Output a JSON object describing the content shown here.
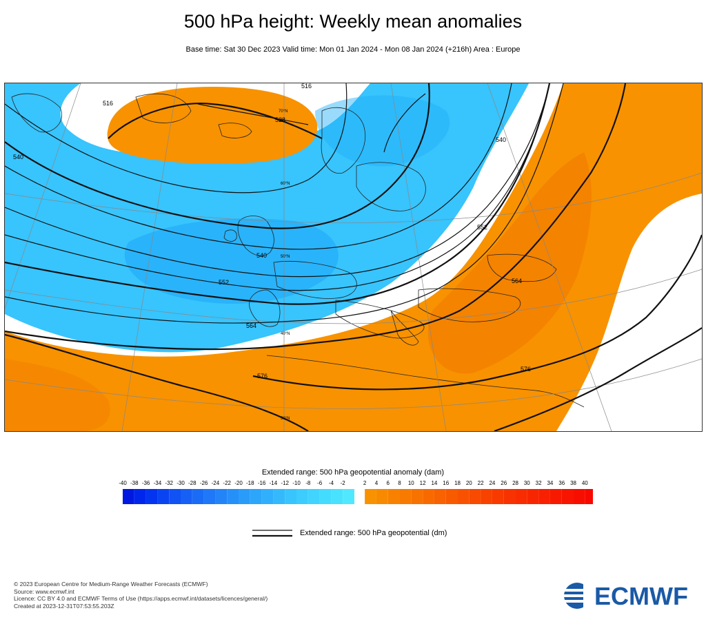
{
  "title": "500 hPa height: Weekly mean anomalies",
  "subtitle": "Base time: Sat 30 Dec 2023 Valid time: Mon 01 Jan 2024 - Mon 08 Jan 2024 (+216h) Area : Europe",
  "colorbar": {
    "title": "Extended range: 500 hPa geopotential anomaly (dam)",
    "ticks": [
      "-40",
      "-38",
      "-36",
      "-34",
      "-32",
      "-30",
      "-28",
      "-26",
      "-24",
      "-22",
      "-20",
      "-18",
      "-16",
      "-14",
      "-12",
      "-10",
      "-8",
      "-6",
      "-4",
      "-2",
      "2",
      "4",
      "6",
      "8",
      "10",
      "12",
      "14",
      "16",
      "18",
      "20",
      "22",
      "24",
      "26",
      "28",
      "30",
      "32",
      "34",
      "36",
      "38",
      "40"
    ],
    "negative_colors": [
      "#0018e0",
      "#0026ec",
      "#0334f0",
      "#0a44f2",
      "#1052f4",
      "#1660f5",
      "#1a6cf6",
      "#1e78f7",
      "#2384f8",
      "#2690f9",
      "#299cfa",
      "#2ca6fb",
      "#30b0fc",
      "#34bafc",
      "#38c4fd",
      "#3cccfd",
      "#40d4fe",
      "#44dcfe",
      "#48e2fe",
      "#50e8ff"
    ],
    "positive_colors": [
      "#f89200",
      "#f88a00",
      "#f88200",
      "#f87a00",
      "#f87200",
      "#f86a00",
      "#f86200",
      "#f85a00",
      "#f85200",
      "#f84a00",
      "#f84200",
      "#f83a00",
      "#f83200",
      "#f82c00",
      "#f82600",
      "#f82000",
      "#f81a00",
      "#f81400",
      "#f80e00",
      "#f80800"
    ]
  },
  "legend": {
    "line_label": "Extended range: 500 hPa geopotential (dm)"
  },
  "map": {
    "anomaly_colors": {
      "neg": "#38c4fd",
      "neg_deep": "#1e9cf6",
      "pos": "#f89200",
      "pos_deep": "#f27d00"
    },
    "contour_labels": [
      "516",
      "528",
      "540",
      "540",
      "552",
      "552",
      "564",
      "576",
      "564",
      "576"
    ],
    "lat_labels": [
      "70°N",
      "60°N",
      "50°N",
      "40°N",
      "30°N"
    ]
  },
  "footer": {
    "lines": [
      "© 2023 European Centre for Medium-Range Weather Forecasts (ECMWF)",
      "Source: www.ecmwf.int",
      "Licence: CC BY 4.0 and ECMWF Terms of Use (https://apps.ecmwf.int/datasets/licences/general/)",
      "Created at 2023-12-31T07:53:55.203Z"
    ]
  },
  "logo": {
    "text": "ECMWF",
    "color": "#1a5aa6"
  }
}
